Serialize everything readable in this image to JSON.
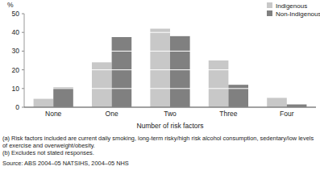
{
  "chart_data": {
    "type": "bar",
    "y_label": "%",
    "x_label": "Number of risk factors",
    "categories": [
      "None",
      "One",
      "Two",
      "Three",
      "Four"
    ],
    "series": [
      {
        "name": "Indigenous",
        "color": "#c8c8c8",
        "values": [
          4.5,
          24,
          42,
          25,
          5
        ]
      },
      {
        "name": "Non-Indigenous",
        "color": "#808080",
        "values": [
          10.5,
          37.5,
          38,
          12,
          1.5
        ]
      }
    ],
    "ylim": [
      0,
      50
    ],
    "yticks": [
      0,
      10,
      20,
      30,
      40,
      50
    ],
    "grid": true,
    "legend": "top-right",
    "annotations": [
      "(a) Risk factors included are current daily smoking, long-term risky/high risk alcohol consumption, sedentary/low levels of exercise and overweight/obesity.",
      "(b) Excludes not stated responses.",
      "Source: ABS 2004–05 NATSIHS, 2004–05 NHS"
    ]
  }
}
